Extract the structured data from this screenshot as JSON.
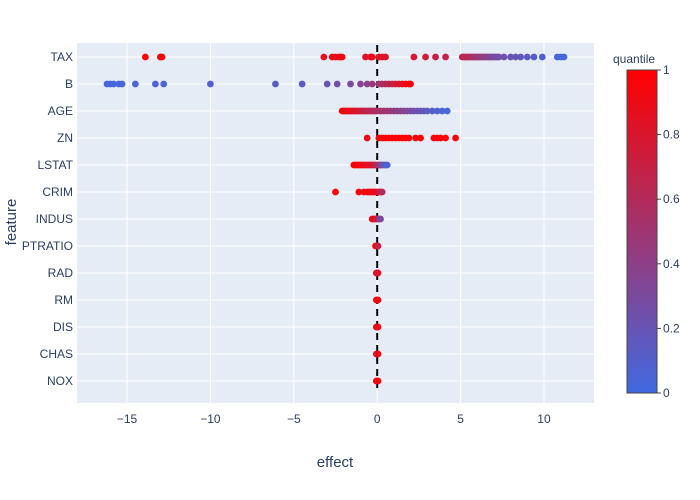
{
  "chart_data": {
    "type": "scatter",
    "xlabel": "effect",
    "ylabel": "feature",
    "xlim": [
      -18,
      13
    ],
    "x_ticks": [
      -15,
      -10,
      -5,
      0,
      5,
      10
    ],
    "x_tick_labels": [
      "−15",
      "−10",
      "−5",
      "0",
      "5",
      "10"
    ],
    "categories": [
      "TAX",
      "B",
      "AGE",
      "ZN",
      "LSTAT",
      "CRIM",
      "INDUS",
      "PTRATIO",
      "RAD",
      "RM",
      "DIS",
      "CHAS",
      "NOX"
    ],
    "reference_line_x": 0,
    "colorbar": {
      "title": "quantile",
      "range": [
        0,
        1
      ],
      "ticks": [
        0,
        0.2,
        0.4,
        0.6,
        0.8,
        1
      ],
      "tick_labels": [
        "0",
        "0.2",
        "0.4",
        "0.6",
        "0.8",
        "1"
      ],
      "color_low": "#4169e1",
      "color_high": "#ff0000"
    },
    "series": [
      {
        "feature": "TAX",
        "points": [
          [
            -13.9,
            0.97
          ],
          [
            -13.0,
            0.96
          ],
          [
            -12.9,
            0.97
          ],
          [
            -3.2,
            0.9
          ],
          [
            -2.7,
            0.92
          ],
          [
            -2.5,
            0.88
          ],
          [
            -2.3,
            0.93
          ],
          [
            -2.2,
            0.9
          ],
          [
            -2.1,
            0.91
          ],
          [
            -0.7,
            0.86
          ],
          [
            -0.4,
            0.85
          ],
          [
            -0.3,
            0.87
          ],
          [
            0.1,
            0.84
          ],
          [
            0.3,
            0.83
          ],
          [
            0.5,
            0.82
          ],
          [
            2.2,
            0.78
          ],
          [
            2.9,
            0.75
          ],
          [
            3.5,
            0.72
          ],
          [
            4.1,
            0.69
          ],
          [
            5.1,
            0.65
          ],
          [
            5.2,
            0.64
          ],
          [
            5.3,
            0.63
          ],
          [
            5.4,
            0.62
          ],
          [
            5.5,
            0.6
          ],
          [
            5.6,
            0.58
          ],
          [
            5.7,
            0.56
          ],
          [
            5.8,
            0.54
          ],
          [
            5.9,
            0.52
          ],
          [
            6.0,
            0.5
          ],
          [
            6.1,
            0.48
          ],
          [
            6.2,
            0.46
          ],
          [
            6.3,
            0.44
          ],
          [
            6.4,
            0.42
          ],
          [
            6.5,
            0.4
          ],
          [
            6.6,
            0.38
          ],
          [
            6.7,
            0.36
          ],
          [
            6.8,
            0.35
          ],
          [
            6.9,
            0.33
          ],
          [
            7.0,
            0.32
          ],
          [
            7.1,
            0.3
          ],
          [
            7.2,
            0.28
          ],
          [
            7.3,
            0.26
          ],
          [
            7.6,
            0.24
          ],
          [
            8.0,
            0.21
          ],
          [
            8.3,
            0.19
          ],
          [
            8.6,
            0.17
          ],
          [
            9.0,
            0.14
          ],
          [
            9.4,
            0.12
          ],
          [
            9.9,
            0.09
          ],
          [
            10.8,
            0.05
          ],
          [
            11.0,
            0.03
          ],
          [
            11.2,
            0.02
          ]
        ]
      },
      {
        "feature": "B",
        "points": [
          [
            -16.2,
            0.02
          ],
          [
            -16.0,
            0.03
          ],
          [
            -15.8,
            0.02
          ],
          [
            -15.5,
            0.03
          ],
          [
            -15.3,
            0.04
          ],
          [
            -14.5,
            0.05
          ],
          [
            -13.3,
            0.06
          ],
          [
            -12.8,
            0.07
          ],
          [
            -10.0,
            0.09
          ],
          [
            -6.1,
            0.12
          ],
          [
            -4.5,
            0.15
          ],
          [
            -3.0,
            0.2
          ],
          [
            -2.4,
            0.25
          ],
          [
            -1.6,
            0.3
          ],
          [
            -1.0,
            0.35
          ],
          [
            -0.6,
            0.4
          ],
          [
            -0.3,
            0.45
          ],
          [
            0.1,
            0.5
          ],
          [
            0.3,
            0.55
          ],
          [
            0.5,
            0.6
          ],
          [
            0.7,
            0.65
          ],
          [
            0.9,
            0.7
          ],
          [
            1.1,
            0.75
          ],
          [
            1.3,
            0.8
          ],
          [
            1.5,
            0.85
          ],
          [
            1.7,
            0.9
          ],
          [
            1.9,
            0.95
          ],
          [
            2.0,
            0.98
          ]
        ]
      },
      {
        "feature": "AGE",
        "points": [
          [
            -2.1,
            0.98
          ],
          [
            -2.0,
            0.96
          ],
          [
            -1.9,
            0.94
          ],
          [
            -1.8,
            0.92
          ],
          [
            -1.7,
            0.9
          ],
          [
            -1.6,
            0.88
          ],
          [
            -1.5,
            0.86
          ],
          [
            -1.4,
            0.84
          ],
          [
            -1.3,
            0.82
          ],
          [
            -1.2,
            0.8
          ],
          [
            -1.1,
            0.78
          ],
          [
            -1.0,
            0.76
          ],
          [
            -0.9,
            0.74
          ],
          [
            -0.8,
            0.72
          ],
          [
            -0.7,
            0.7
          ],
          [
            -0.6,
            0.68
          ],
          [
            -0.5,
            0.66
          ],
          [
            -0.4,
            0.64
          ],
          [
            -0.3,
            0.62
          ],
          [
            -0.2,
            0.6
          ],
          [
            -0.1,
            0.58
          ],
          [
            0.0,
            0.56
          ],
          [
            0.2,
            0.54
          ],
          [
            0.4,
            0.52
          ],
          [
            0.6,
            0.5
          ],
          [
            0.8,
            0.47
          ],
          [
            1.0,
            0.44
          ],
          [
            1.2,
            0.41
          ],
          [
            1.4,
            0.38
          ],
          [
            1.6,
            0.35
          ],
          [
            1.8,
            0.32
          ],
          [
            2.0,
            0.29
          ],
          [
            2.2,
            0.26
          ],
          [
            2.4,
            0.23
          ],
          [
            2.6,
            0.2
          ],
          [
            2.8,
            0.17
          ],
          [
            3.0,
            0.14
          ],
          [
            3.3,
            0.11
          ],
          [
            3.6,
            0.08
          ],
          [
            3.9,
            0.05
          ],
          [
            4.2,
            0.03
          ]
        ]
      },
      {
        "feature": "ZN",
        "points": [
          [
            -0.6,
            0.9
          ],
          [
            0.1,
            0.95
          ],
          [
            0.3,
            0.96
          ],
          [
            0.5,
            0.97
          ],
          [
            0.7,
            0.98
          ],
          [
            0.9,
            0.97
          ],
          [
            1.1,
            0.98
          ],
          [
            1.3,
            0.97
          ],
          [
            1.5,
            0.98
          ],
          [
            1.7,
            0.97
          ],
          [
            1.9,
            0.98
          ],
          [
            2.3,
            0.97
          ],
          [
            2.6,
            0.96
          ],
          [
            3.4,
            0.97
          ],
          [
            3.6,
            0.96
          ],
          [
            3.8,
            0.97
          ],
          [
            4.1,
            0.97
          ],
          [
            4.7,
            0.96
          ]
        ]
      },
      {
        "feature": "LSTAT",
        "points": [
          [
            -1.4,
            0.97
          ],
          [
            -1.3,
            0.96
          ],
          [
            -1.2,
            0.95
          ],
          [
            -1.1,
            0.94
          ],
          [
            -1.0,
            0.93
          ],
          [
            -0.9,
            0.92
          ],
          [
            -0.8,
            0.91
          ],
          [
            -0.7,
            0.9
          ],
          [
            -0.6,
            0.88
          ],
          [
            -0.5,
            0.86
          ],
          [
            -0.4,
            0.84
          ],
          [
            -0.3,
            0.8
          ],
          [
            -0.2,
            0.75
          ],
          [
            -0.1,
            0.7
          ],
          [
            0.0,
            0.6
          ],
          [
            0.1,
            0.5
          ],
          [
            0.2,
            0.4
          ],
          [
            0.3,
            0.3
          ],
          [
            0.4,
            0.2
          ],
          [
            0.5,
            0.12
          ],
          [
            0.6,
            0.05
          ]
        ]
      },
      {
        "feature": "CRIM",
        "points": [
          [
            -2.5,
            0.98
          ],
          [
            -1.1,
            0.96
          ],
          [
            -0.8,
            0.95
          ],
          [
            -0.6,
            0.94
          ],
          [
            -0.5,
            0.93
          ],
          [
            -0.4,
            0.92
          ],
          [
            -0.3,
            0.91
          ],
          [
            -0.2,
            0.9
          ],
          [
            -0.1,
            0.88
          ],
          [
            0.0,
            0.86
          ],
          [
            0.1,
            0.8
          ],
          [
            0.2,
            0.7
          ],
          [
            0.3,
            0.6
          ]
        ]
      },
      {
        "feature": "INDUS",
        "points": [
          [
            -0.3,
            0.95
          ],
          [
            -0.2,
            0.9
          ],
          [
            -0.1,
            0.85
          ],
          [
            0.0,
            0.7
          ],
          [
            0.1,
            0.5
          ],
          [
            0.2,
            0.3
          ]
        ]
      },
      {
        "feature": "PTRATIO",
        "points": [
          [
            -0.1,
            0.95
          ],
          [
            0.0,
            0.9
          ],
          [
            0.05,
            0.7
          ]
        ]
      },
      {
        "feature": "RAD",
        "points": [
          [
            -0.05,
            0.95
          ],
          [
            0.0,
            0.9
          ],
          [
            0.05,
            0.8
          ]
        ]
      },
      {
        "feature": "RM",
        "points": [
          [
            -0.05,
            0.98
          ],
          [
            0.0,
            0.95
          ],
          [
            0.05,
            0.92
          ]
        ]
      },
      {
        "feature": "DIS",
        "points": [
          [
            -0.05,
            0.97
          ],
          [
            0.0,
            0.95
          ],
          [
            0.05,
            0.9
          ]
        ]
      },
      {
        "feature": "CHAS",
        "points": [
          [
            -0.05,
            0.96
          ],
          [
            0.0,
            0.6
          ],
          [
            0.05,
            0.93
          ]
        ]
      },
      {
        "feature": "NOX",
        "points": [
          [
            -0.05,
            0.97
          ],
          [
            0.0,
            0.95
          ],
          [
            0.05,
            0.94
          ]
        ]
      }
    ]
  }
}
